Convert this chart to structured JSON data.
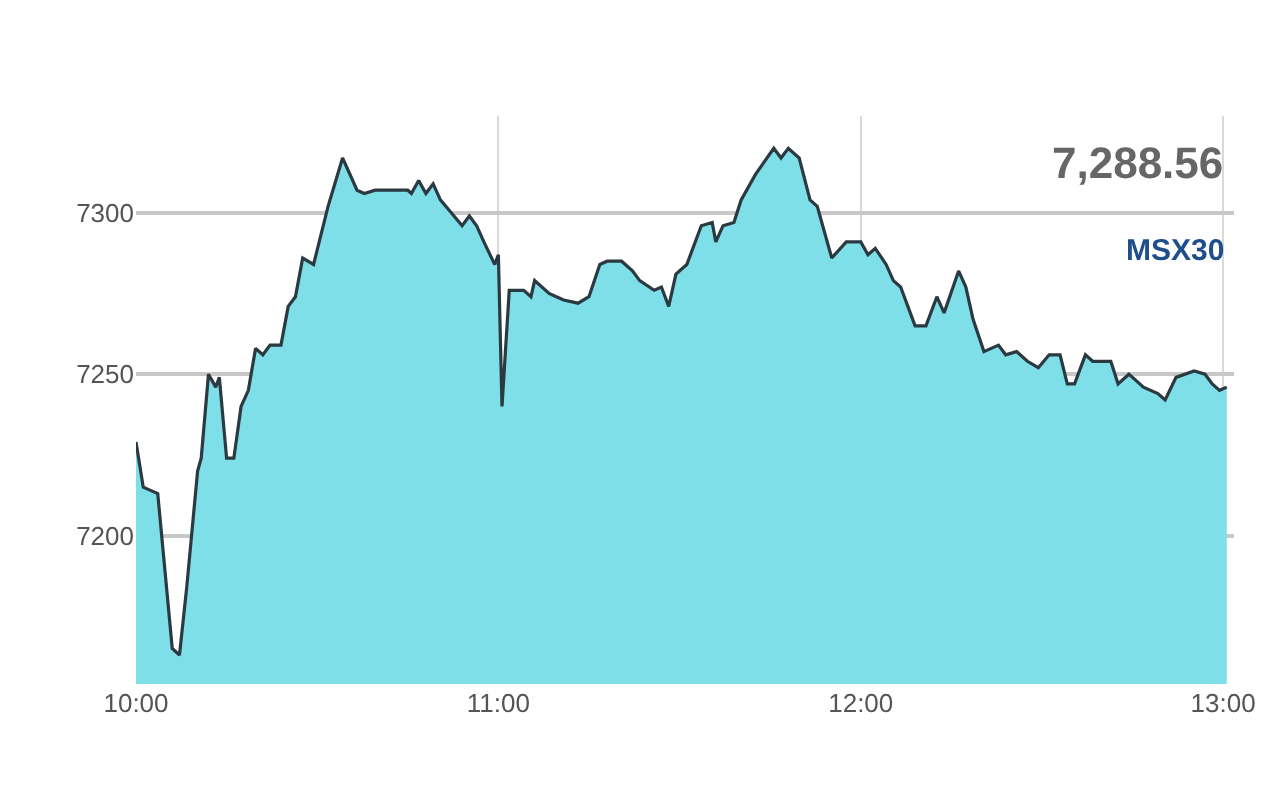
{
  "chart_data": {
    "type": "area",
    "x": [
      10.0,
      10.02,
      10.04,
      10.06,
      10.1,
      10.12,
      10.14,
      10.17,
      10.18,
      10.2,
      10.22,
      10.23,
      10.25,
      10.27,
      10.29,
      10.31,
      10.33,
      10.35,
      10.37,
      10.4,
      10.42,
      10.44,
      10.46,
      10.49,
      10.51,
      10.53,
      10.57,
      10.61,
      10.63,
      10.66,
      10.72,
      10.75,
      10.76,
      10.78,
      10.8,
      10.82,
      10.84,
      10.87,
      10.9,
      10.92,
      10.94,
      10.96,
      10.99,
      11.0,
      11.01,
      11.03,
      11.07,
      11.09,
      11.1,
      11.14,
      11.16,
      11.18,
      11.22,
      11.25,
      11.28,
      11.3,
      11.34,
      11.37,
      11.39,
      11.43,
      11.45,
      11.47,
      11.49,
      11.52,
      11.56,
      11.59,
      11.6,
      11.62,
      11.65,
      11.67,
      11.71,
      11.76,
      11.78,
      11.8,
      11.83,
      11.86,
      11.88,
      11.92,
      11.96,
      12.0,
      12.02,
      12.04,
      12.07,
      12.09,
      12.11,
      12.15,
      12.18,
      12.21,
      12.23,
      12.27,
      12.29,
      12.31,
      12.34,
      12.38,
      12.4,
      12.43,
      12.46,
      12.49,
      12.52,
      12.55,
      12.57,
      12.59,
      12.62,
      12.64,
      12.69,
      12.71,
      12.74,
      12.78,
      12.82,
      12.84,
      12.87,
      12.92,
      12.95,
      12.97,
      12.99,
      13.01
    ],
    "series": [
      {
        "color": "#7fdfe9",
        "values": [
          7229,
          7215,
          7214,
          7213,
          7165,
          7163,
          7184,
          7220,
          7224,
          7250,
          7246,
          7249,
          7224,
          7224,
          7240,
          7245,
          7258,
          7256,
          7259,
          7259,
          7271,
          7274,
          7286,
          7284,
          7293,
          7302,
          7317,
          7307,
          7306,
          7307,
          7307,
          7307,
          7306,
          7310,
          7306,
          7309,
          7304,
          7300,
          7296,
          7299,
          7296,
          7291,
          7284,
          7287,
          7240,
          7276,
          7276,
          7274,
          7279,
          7275,
          7274,
          7273,
          7272,
          7274,
          7284,
          7285,
          7285,
          7282,
          7279,
          7276,
          7277,
          7271,
          7281,
          7284,
          7296,
          7297,
          7291,
          7296,
          7297,
          7304,
          7312,
          7320,
          7317,
          7320,
          7317,
          7304,
          7302,
          7286,
          7291,
          7291,
          7287,
          7289,
          7284,
          7279,
          7277,
          7265,
          7265,
          7274,
          7269,
          7282,
          7277,
          7267,
          7257,
          7259,
          7256,
          7257,
          7254,
          7252,
          7256,
          7256,
          7247,
          7247,
          7256,
          7254,
          7254,
          7247,
          7250,
          7246,
          7244,
          7242,
          7249,
          7251,
          7250,
          7247,
          7245,
          7246
        ]
      }
    ],
    "xlim": [
      10,
      13.03
    ],
    "xticks": [
      {
        "value": 10,
        "label": "10:00"
      },
      {
        "value": 11,
        "label": "11:00"
      },
      {
        "value": 12,
        "label": "12:00"
      },
      {
        "value": 13,
        "label": "13:00"
      }
    ],
    "ylim": [
      7154,
      7330
    ],
    "yticks": [
      7200,
      7250,
      7300
    ],
    "grid": true,
    "annotations": [
      "7,288.56",
      "MSX30"
    ]
  }
}
